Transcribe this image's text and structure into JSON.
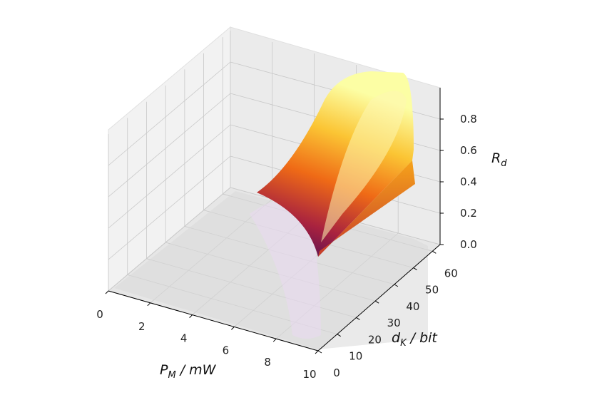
{
  "chart_data": {
    "type": "surface3d",
    "x_label": {
      "main": "P",
      "sub": "M",
      "unit": " / mW"
    },
    "y_label": {
      "main": "d",
      "sub": "K",
      "unit": " / bit"
    },
    "z_label": {
      "main": "R",
      "sub": "d"
    },
    "x_ticks": [
      "0",
      "2",
      "4",
      "6",
      "8",
      "10"
    ],
    "y_ticks": [
      "0",
      "10",
      "20",
      "30",
      "40",
      "50",
      "60"
    ],
    "z_ticks": [
      "0.0",
      "0.2",
      "0.4",
      "0.6",
      "0.8"
    ],
    "xlim": [
      0,
      10
    ],
    "ylim": [
      0,
      64
    ],
    "zlim": [
      0,
      1.0
    ],
    "colormap": "inferno",
    "grid": true,
    "surface_summary": {
      "peak_value": 1.0,
      "peak_x_range": [
        5,
        10
      ],
      "peak_y_range": [
        25,
        64
      ],
      "near_zero_region": "P_M below about 4 mW"
    }
  }
}
